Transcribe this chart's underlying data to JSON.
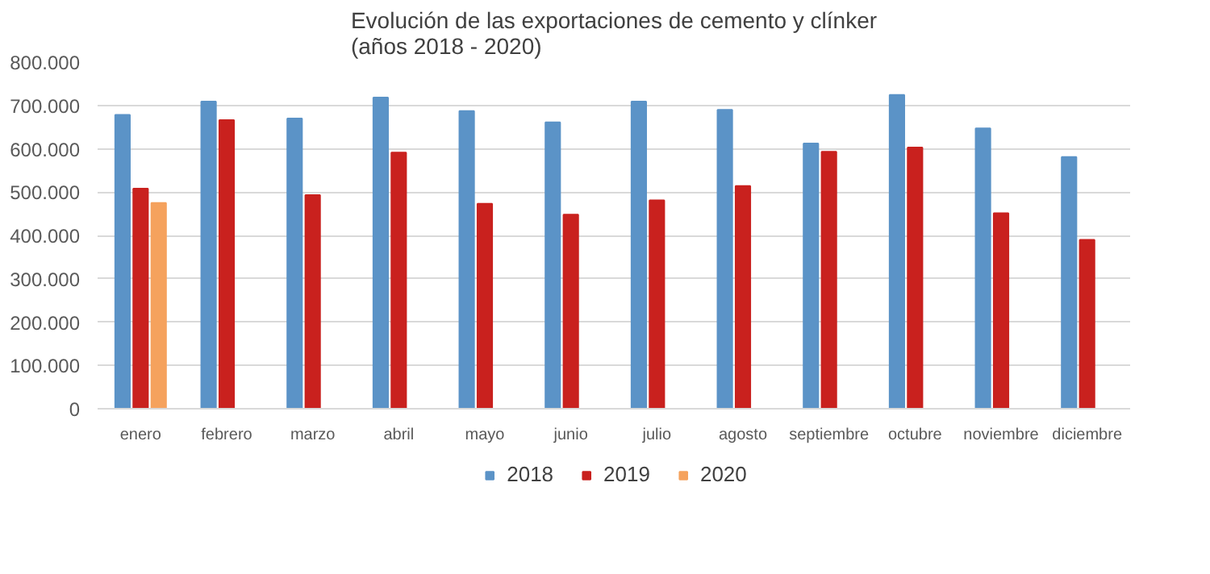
{
  "chart_data": {
    "type": "bar",
    "title": "Evolución de las exportaciones de cemento y clínker\n(años 2018 - 2020)",
    "categories": [
      "enero",
      "febrero",
      "marzo",
      "abril",
      "mayo",
      "junio",
      "julio",
      "agosto",
      "septiembre",
      "octubre",
      "noviembre",
      "diciembre"
    ],
    "series": [
      {
        "name": "2018",
        "color": "#5b93c7",
        "values": [
          678000,
          709000,
          670000,
          718000,
          687000,
          661000,
          709000,
          690000,
          612000,
          724000,
          647000,
          581000
        ]
      },
      {
        "name": "2019",
        "color": "#c9211e",
        "values": [
          508000,
          666000,
          493000,
          591000,
          473000,
          448000,
          481000,
          514000,
          593000,
          603000,
          451000,
          390000
        ]
      },
      {
        "name": "2020",
        "color": "#f5a25d",
        "values": [
          475000,
          null,
          null,
          null,
          null,
          null,
          null,
          null,
          null,
          null,
          null,
          null
        ]
      }
    ],
    "ylim": [
      0,
      800000
    ],
    "yticks": [
      0,
      {
        "value": 100000,
        "label": "100.000"
      },
      {
        "value": 200000,
        "label": "200.000"
      },
      {
        "value": 300000,
        "label": "300.000"
      },
      {
        "value": 400000,
        "label": "400.000"
      },
      {
        "value": 500000,
        "label": "500.000"
      },
      {
        "value": 600000,
        "label": "600.000"
      },
      {
        "value": 700000,
        "label": "700.000"
      },
      {
        "value": 800000,
        "label": "800.000"
      }
    ],
    "grid": "y",
    "legend": "bottom"
  }
}
